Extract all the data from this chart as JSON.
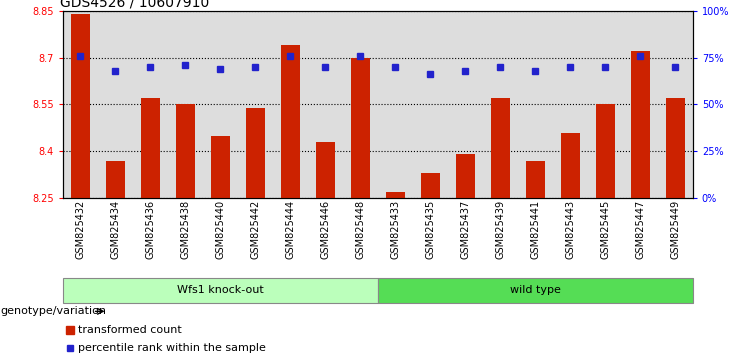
{
  "title": "GDS4526 / 10607910",
  "categories": [
    "GSM825432",
    "GSM825434",
    "GSM825436",
    "GSM825438",
    "GSM825440",
    "GSM825442",
    "GSM825444",
    "GSM825446",
    "GSM825448",
    "GSM825433",
    "GSM825435",
    "GSM825437",
    "GSM825439",
    "GSM825441",
    "GSM825443",
    "GSM825445",
    "GSM825447",
    "GSM825449"
  ],
  "bar_values": [
    8.84,
    8.37,
    8.57,
    8.55,
    8.45,
    8.54,
    8.74,
    8.43,
    8.7,
    8.27,
    8.33,
    8.39,
    8.57,
    8.37,
    8.46,
    8.55,
    8.72,
    8.57
  ],
  "percentile_values": [
    76,
    68,
    70,
    71,
    69,
    70,
    76,
    70,
    76,
    70,
    66,
    68,
    70,
    68,
    70,
    70,
    76,
    70
  ],
  "ylim_left": [
    8.25,
    8.85
  ],
  "ylim_right": [
    0,
    100
  ],
  "yticks_left": [
    8.25,
    8.4,
    8.55,
    8.7,
    8.85
  ],
  "yticks_right": [
    0,
    25,
    50,
    75,
    100
  ],
  "ytick_labels_right": [
    "0%",
    "25%",
    "50%",
    "75%",
    "100%"
  ],
  "bar_color": "#CC2200",
  "percentile_color": "#2222CC",
  "group1_label": "Wfs1 knock-out",
  "group2_label": "wild type",
  "group1_color": "#BBFFBB",
  "group2_color": "#55DD55",
  "group1_count": 9,
  "group2_count": 9,
  "annotation_label": "genotype/variation",
  "legend_bar_label": "transformed count",
  "legend_percentile_label": "percentile rank within the sample",
  "col_bg_color": "#DDDDDD",
  "plot_bg_color": "#FFFFFF",
  "title_fontsize": 10,
  "tick_fontsize": 7,
  "label_fontsize": 8
}
